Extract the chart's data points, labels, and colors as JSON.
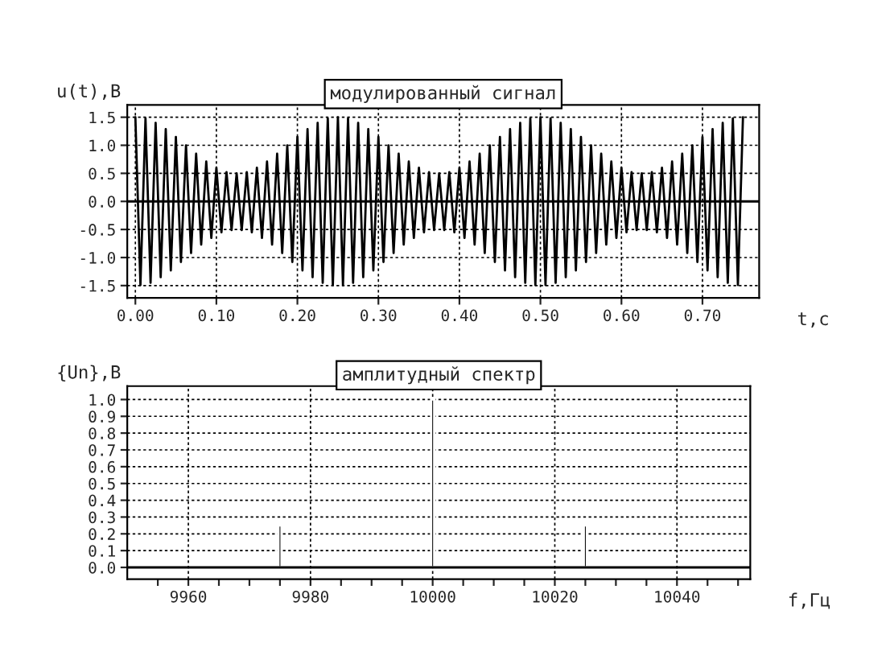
{
  "chart_data": [
    {
      "type": "line",
      "title": "модулированный сигнал",
      "ylabel": "u(t),B",
      "xlabel": "t,c",
      "x": [
        0,
        0.00625,
        0.0125,
        0.01875,
        0.025,
        0.03125,
        0.0375,
        0.04375,
        0.05,
        0.05625,
        0.0625,
        0.06875,
        0.075,
        0.08125,
        0.0875,
        0.09375,
        0.1,
        0.10625,
        0.1125,
        0.11875,
        0.125,
        0.13125,
        0.1375,
        0.14375,
        0.15,
        0.15625,
        0.1625,
        0.16875,
        0.175,
        0.18125,
        0.1875,
        0.19375,
        0.2,
        0.20625,
        0.2125,
        0.21875,
        0.225,
        0.23125,
        0.2375,
        0.24375,
        0.25,
        0.25625,
        0.2625,
        0.26875,
        0.275,
        0.28125,
        0.2875,
        0.29375,
        0.3,
        0.30625,
        0.3125,
        0.31875,
        0.325,
        0.33125,
        0.3375,
        0.34375,
        0.35,
        0.35625,
        0.3625,
        0.36875,
        0.375,
        0.38125,
        0.3875,
        0.39375,
        0.4,
        0.40625,
        0.4125,
        0.41875,
        0.425,
        0.43125,
        0.4375,
        0.44375,
        0.45,
        0.45625,
        0.4625,
        0.46875,
        0.475,
        0.48125,
        0.4875,
        0.49375,
        0.5,
        0.50625,
        0.5125,
        0.51875,
        0.525,
        0.53125,
        0.5375,
        0.54375,
        0.55,
        0.55625,
        0.5625,
        0.56875,
        0.575,
        0.58125,
        0.5875,
        0.59375,
        0.6,
        0.60625,
        0.6125,
        0.61875,
        0.625,
        0.63125,
        0.6375,
        0.64375,
        0.65,
        0.65625,
        0.6625,
        0.66875,
        0.675,
        0.68125,
        0.6875,
        0.69375,
        0.7,
        0.70625,
        0.7125,
        0.71875,
        0.725,
        0.73125,
        0.7375,
        0.74375,
        0.75
      ],
      "series": [
        {
          "color": "#000000",
          "values": [
            1.5,
            -1.49,
            1.48,
            -1.45,
            1.4,
            -1.35,
            1.29,
            -1.23,
            1.15,
            -1.08,
            1.0,
            -0.92,
            0.85,
            -0.77,
            0.71,
            -0.65,
            0.6,
            -0.55,
            0.52,
            -0.51,
            0.5,
            -0.51,
            0.52,
            -0.55,
            0.6,
            -0.65,
            0.71,
            -0.77,
            0.85,
            -0.92,
            1.0,
            -1.08,
            1.15,
            -1.23,
            1.29,
            -1.35,
            1.4,
            -1.45,
            1.48,
            -1.49,
            1.5,
            -1.49,
            1.48,
            -1.45,
            1.4,
            -1.35,
            1.29,
            -1.23,
            1.15,
            -1.08,
            1.0,
            -0.92,
            0.85,
            -0.77,
            0.71,
            -0.65,
            0.6,
            -0.55,
            0.52,
            -0.51,
            0.5,
            -0.51,
            0.52,
            -0.55,
            0.6,
            -0.65,
            0.71,
            -0.77,
            0.85,
            -0.92,
            1.0,
            -1.08,
            1.15,
            -1.23,
            1.29,
            -1.35,
            1.4,
            -1.45,
            1.48,
            -1.49,
            1.5,
            -1.49,
            1.48,
            -1.45,
            1.4,
            -1.35,
            1.29,
            -1.23,
            1.15,
            -1.08,
            1.0,
            -0.92,
            0.85,
            -0.77,
            0.71,
            -0.65,
            0.6,
            -0.55,
            0.52,
            -0.51,
            0.5,
            -0.51,
            0.52,
            -0.55,
            0.6,
            -0.65,
            0.71,
            -0.77,
            0.85,
            -0.92,
            1.0,
            -1.08,
            1.15,
            -1.23,
            1.29,
            -1.35,
            1.4,
            -1.45,
            1.48,
            -1.49,
            1.5
          ]
        }
      ],
      "xlim": [
        -0.01,
        0.77
      ],
      "ylim": [
        -1.72,
        1.72
      ],
      "xticks": [
        {
          "value": 0,
          "label": "0.00"
        },
        {
          "value": 0.1,
          "label": "0.10"
        },
        {
          "value": 0.2,
          "label": "0.20"
        },
        {
          "value": 0.3,
          "label": "0.30"
        },
        {
          "value": 0.4,
          "label": "0.40"
        },
        {
          "value": 0.5,
          "label": "0.50"
        },
        {
          "value": 0.6,
          "label": "0.60"
        },
        {
          "value": 0.7,
          "label": "0.70"
        }
      ],
      "yticks": [
        {
          "value": -1.5,
          "label": "-1.5"
        },
        {
          "value": -1,
          "label": "-1.0"
        },
        {
          "value": -0.5,
          "label": "-0.5"
        },
        {
          "value": 0,
          "label": "0.0"
        },
        {
          "value": 0.5,
          "label": "0.5"
        },
        {
          "value": 1,
          "label": "1.0"
        },
        {
          "value": 1.5,
          "label": "1.5"
        }
      ],
      "ref_lines": [
        {
          "axis": "y",
          "value": 0,
          "color": "#000000",
          "line_style": "solid"
        }
      ],
      "grid": true,
      "line_style": "solid",
      "marker": "none"
    },
    {
      "type": "bar",
      "title": "амплитудный спектр",
      "ylabel": "{Un},B",
      "xlabel": "f,Гц",
      "x": [
        9975,
        10000,
        10025
      ],
      "series": [
        {
          "color": "#000000",
          "values": [
            0.25,
            1.0,
            0.25
          ]
        }
      ],
      "xlim": [
        9950,
        10052
      ],
      "ylim": [
        -0.07,
        1.08
      ],
      "xticks": [
        {
          "value": 9955,
          "label": null
        },
        9960,
        {
          "value": 9965,
          "label": null
        },
        {
          "value": 9970,
          "label": null
        },
        {
          "value": 9975,
          "label": null
        },
        9980,
        {
          "value": 9985,
          "label": null
        },
        {
          "value": 9990,
          "label": null
        },
        {
          "value": 9995,
          "label": null
        },
        10000,
        {
          "value": 10005,
          "label": null
        },
        {
          "value": 10010,
          "label": null
        },
        {
          "value": 10015,
          "label": null
        },
        10020,
        {
          "value": 10025,
          "label": null
        },
        {
          "value": 10030,
          "label": null
        },
        {
          "value": 10035,
          "label": null
        },
        10040,
        {
          "value": 10045,
          "label": null
        },
        {
          "value": 10050,
          "label": null
        }
      ],
      "yticks": [
        {
          "value": 0,
          "label": "0.0"
        },
        0.1,
        0.2,
        0.3,
        0.4,
        0.5,
        0.6,
        0.7,
        0.8,
        0.9,
        {
          "value": 1,
          "label": "1.0"
        }
      ],
      "ref_lines": [
        {
          "axis": "y",
          "value": 0,
          "color": "#000000",
          "line_style": "solid"
        }
      ],
      "grid": true
    }
  ]
}
